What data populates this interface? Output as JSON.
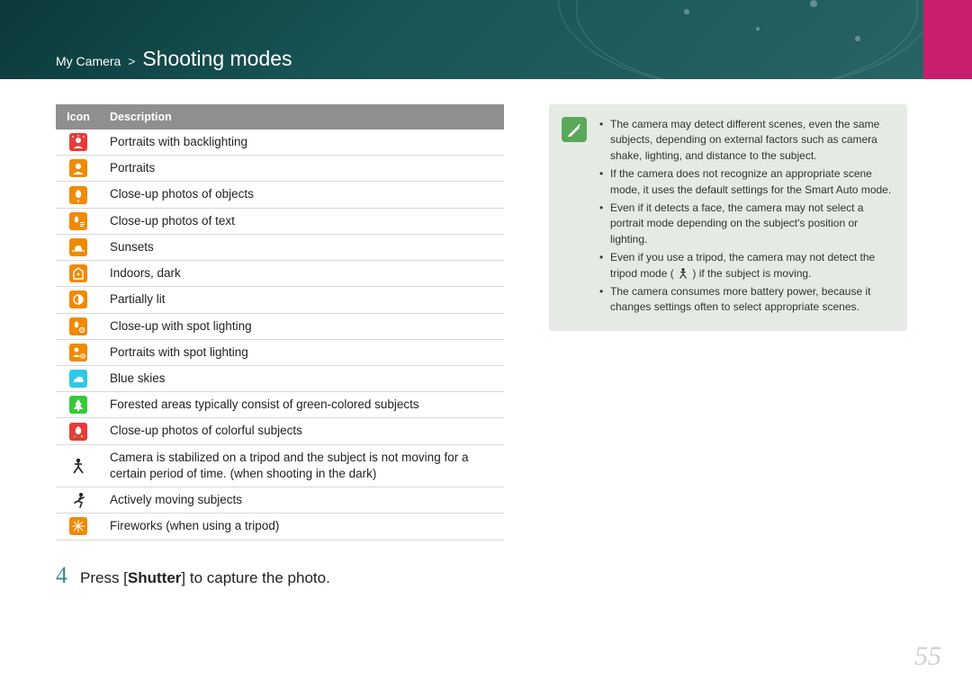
{
  "header": {
    "breadcrumb_parent": "My Camera",
    "breadcrumb_sep": ">",
    "section_title": "Shooting modes",
    "bg_gradient_from": "#0a3a3a",
    "bg_gradient_to": "#2a6565",
    "accent_color": "#c71f6e"
  },
  "table": {
    "columns": [
      "Icon",
      "Description"
    ],
    "header_bg": "#8f8f8f",
    "header_fg": "#ffffff",
    "row_border": "#d8d8d8",
    "font_size": 13.5,
    "rows": [
      {
        "icon_bg": "#e83a3a",
        "icon_name": "portrait-backlight-icon",
        "desc": "Portraits with backlighting"
      },
      {
        "icon_bg": "#f08a00",
        "icon_name": "portrait-icon",
        "desc": "Portraits"
      },
      {
        "icon_bg": "#f08a00",
        "icon_name": "macro-object-icon",
        "desc": "Close-up photos of objects"
      },
      {
        "icon_bg": "#f08a00",
        "icon_name": "macro-text-icon",
        "desc": "Close-up photos of text"
      },
      {
        "icon_bg": "#f08a00",
        "icon_name": "sunset-icon",
        "desc": "Sunsets"
      },
      {
        "icon_bg": "#f08a00",
        "icon_name": "indoor-dark-icon",
        "desc": "Indoors, dark"
      },
      {
        "icon_bg": "#f08a00",
        "icon_name": "partially-lit-icon",
        "desc": "Partially lit"
      },
      {
        "icon_bg": "#f08a00",
        "icon_name": "macro-spot-icon",
        "desc": "Close-up with spot lighting"
      },
      {
        "icon_bg": "#f08a00",
        "icon_name": "portrait-spot-icon",
        "desc": "Portraits with spot lighting"
      },
      {
        "icon_bg": "#2ec8e8",
        "icon_name": "blue-sky-icon",
        "desc": "Blue skies"
      },
      {
        "icon_bg": "#3ac83a",
        "icon_name": "forest-icon",
        "desc": "Forested areas typically consist of green-colored subjects"
      },
      {
        "icon_bg": "#e83a3a",
        "icon_name": "macro-color-icon",
        "desc": "Close-up photos of colorful subjects"
      },
      {
        "icon_bg": "none",
        "icon_name": "tripod-icon",
        "desc": "Camera is stabilized on a tripod and the subject is not moving for a certain period of time. (when shooting in the dark)"
      },
      {
        "icon_bg": "none",
        "icon_name": "action-icon",
        "desc": "Actively moving subjects"
      },
      {
        "icon_bg": "#f08a00",
        "icon_name": "fireworks-icon",
        "desc": "Fireworks (when using a tripod)"
      }
    ]
  },
  "step": {
    "number": "4",
    "text_before": "Press [",
    "text_bold": "Shutter",
    "text_after": "] to capture the photo.",
    "number_color": "#3a8a8a"
  },
  "note": {
    "bg": "#e6eae5",
    "icon_bg": "#5aa85a",
    "icon_name": "pen-note-icon",
    "items": [
      "The camera may detect different scenes, even the same subjects, depending on external factors such as camera shake, lighting, and distance to the subject.",
      "If the camera does not recognize an appropriate scene mode, it uses the default settings for the Smart Auto mode.",
      "Even if it detects a face, the camera may not select a portrait mode depending on the subject's position or lighting.",
      "Even if you use a tripod, the camera may not detect the tripod mode ( __TRIPOD__ ) if the subject is moving.",
      "The camera consumes more battery power, because it changes settings often to select appropriate scenes."
    ]
  },
  "page_number": "55"
}
